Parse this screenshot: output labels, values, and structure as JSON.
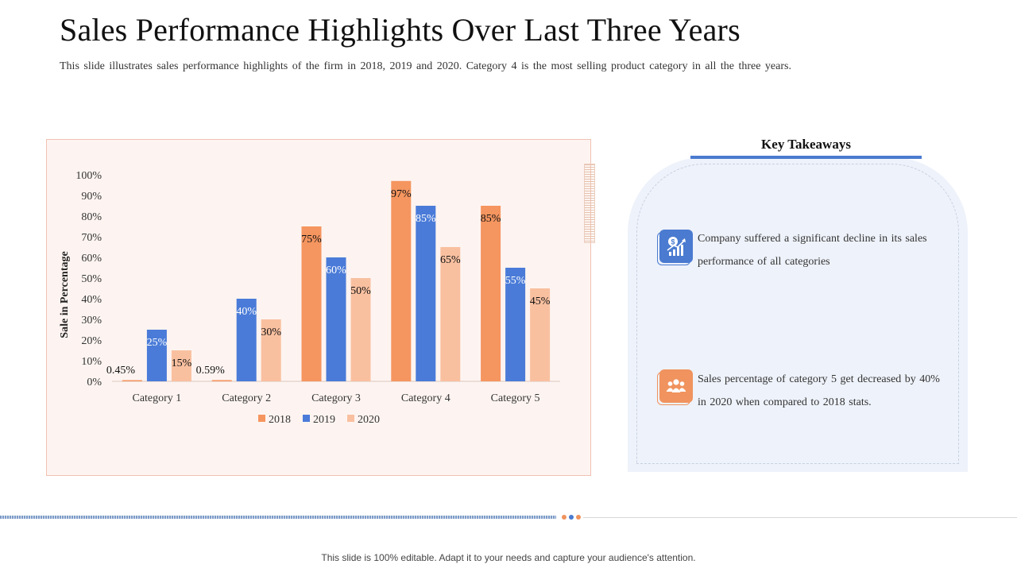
{
  "title": "Sales Performance Highlights Over Last Three Years",
  "subtitle": "This slide illustrates sales performance highlights of the firm in 2018, 2019 and 2020. Category 4 is the most selling product category in all the three years.",
  "takeaways": {
    "heading": "Key Takeaways",
    "items": [
      {
        "icon": "money-growth-icon",
        "text": "Company suffered a significant decline in its sales performance of all categories",
        "color": "#4a7bd0"
      },
      {
        "icon": "people-group-icon",
        "text": "Sales percentage of category 5 get decreased by 40% in 2020 when compared to 2018 stats.",
        "color": "#f0935e"
      }
    ]
  },
  "footer_note": "This slide is 100% editable. Adapt it to your needs and capture your audience's attention.",
  "colors": {
    "accent_blue": "#4a7bd0",
    "accent_orange": "#f0935e",
    "panel_bg": "#fdf4f1"
  },
  "chart_data": {
    "type": "bar",
    "title": "",
    "xlabel": "",
    "ylabel": "Sale in Percentage",
    "ylim": [
      0,
      100
    ],
    "yticks": [
      "0%",
      "10%",
      "20%",
      "30%",
      "40%",
      "50%",
      "60%",
      "70%",
      "80%",
      "90%",
      "100%"
    ],
    "categories": [
      "Category 1",
      "Category 2",
      "Category 3",
      "Category 4",
      "Category 5"
    ],
    "legend_position": "bottom",
    "series": [
      {
        "name": "2018",
        "color": "#f5955f",
        "label_color": "#111111",
        "values": [
          0.45,
          0.59,
          75,
          97,
          85
        ],
        "labels": [
          "0.45%",
          "0.59%",
          "75%",
          "97%",
          "85%"
        ]
      },
      {
        "name": "2019",
        "color": "#4a7bd8",
        "label_color": "#ffffff",
        "values": [
          25,
          40,
          60,
          85,
          55
        ],
        "labels": [
          "25%",
          "40%",
          "60%",
          "85%",
          "55%"
        ]
      },
      {
        "name": "2020",
        "color": "#f9c0a0",
        "label_color": "#111111",
        "values": [
          15,
          30,
          50,
          65,
          45
        ],
        "labels": [
          "15%",
          "30%",
          "50%",
          "65%",
          "45%"
        ]
      }
    ]
  }
}
